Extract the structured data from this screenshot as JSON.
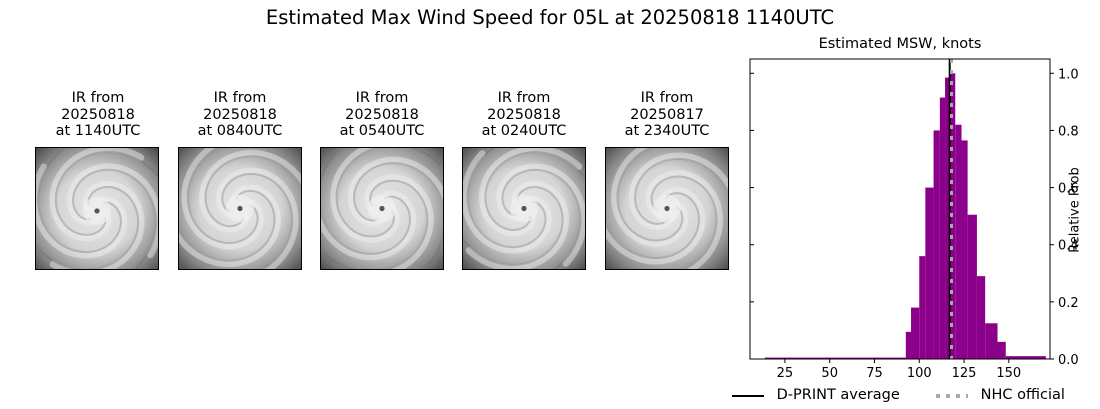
{
  "figure": {
    "suptitle": "Estimated Max Wind Speed for 05L at 20250818 1140UTC"
  },
  "ir_panels": [
    {
      "line1": "IR from",
      "line2": "20250818",
      "line3": "at 1140UTC",
      "eye": [
        0.5,
        0.52
      ],
      "swirl": 0.0
    },
    {
      "line1": "IR from",
      "line2": "20250818",
      "line3": "at 0840UTC",
      "eye": [
        0.5,
        0.5
      ],
      "swirl": 0.6
    },
    {
      "line1": "IR from",
      "line2": "20250818",
      "line3": "at 0540UTC",
      "eye": [
        0.5,
        0.5
      ],
      "swirl": 1.2
    },
    {
      "line1": "IR from",
      "line2": "20250818",
      "line3": "at 0240UTC",
      "eye": [
        0.5,
        0.5
      ],
      "swirl": 1.8
    },
    {
      "line1": "IR from",
      "line2": "20250817",
      "line3": "at 2340UTC",
      "eye": [
        0.5,
        0.5
      ],
      "swirl": 2.4
    }
  ],
  "chart_data": {
    "type": "bar",
    "title": "Estimated MSW, knots",
    "xlabel": "",
    "ylabel": "Relative Prob",
    "xlim": [
      5.5,
      173
    ],
    "ylim": [
      0,
      1.05
    ],
    "xticks": [
      25,
      50,
      75,
      100,
      125,
      150
    ],
    "yticks": [
      0.0,
      0.2,
      0.4,
      0.6,
      0.8,
      1.0
    ],
    "ytick_labels": [
      "0.0",
      "0.2",
      "0.4",
      "0.6",
      "0.8",
      "1.0"
    ],
    "y_axis_side": "right",
    "bar_color": "#8b008b",
    "bins": [
      {
        "x0": 13.8,
        "x1": 92.5,
        "value": 0.005
      },
      {
        "x0": 92.5,
        "x1": 95.4,
        "value": 0.095
      },
      {
        "x0": 95.4,
        "x1": 100.0,
        "value": 0.18
      },
      {
        "x0": 100.0,
        "x1": 103.4,
        "value": 0.36
      },
      {
        "x0": 103.4,
        "x1": 108.0,
        "value": 0.6
      },
      {
        "x0": 108.0,
        "x1": 111.5,
        "value": 0.8
      },
      {
        "x0": 111.5,
        "x1": 114.4,
        "value": 0.915
      },
      {
        "x0": 114.4,
        "x1": 116.7,
        "value": 0.985
      },
      {
        "x0": 116.7,
        "x1": 120.1,
        "value": 1.0
      },
      {
        "x0": 120.1,
        "x1": 123.6,
        "value": 0.82
      },
      {
        "x0": 123.6,
        "x1": 127.0,
        "value": 0.765
      },
      {
        "x0": 127.0,
        "x1": 132.2,
        "value": 0.505
      },
      {
        "x0": 132.2,
        "x1": 136.8,
        "value": 0.29
      },
      {
        "x0": 136.8,
        "x1": 143.7,
        "value": 0.125
      },
      {
        "x0": 143.7,
        "x1": 148.3,
        "value": 0.06
      },
      {
        "x0": 148.3,
        "x1": 170.7,
        "value": 0.01
      }
    ],
    "lines": [
      {
        "name": "D-PRINT average",
        "x": 117,
        "color": "#000000",
        "style": "solid"
      },
      {
        "name": "NHC official",
        "x": 118,
        "color": "#aaaaaa",
        "style": "dotted"
      }
    ],
    "legend": [
      {
        "label": "D-PRINT average",
        "color": "#000000",
        "style": "solid"
      },
      {
        "label": "NHC official",
        "color": "#aaaaaa",
        "style": "dotted"
      }
    ],
    "legend_position": "below"
  }
}
